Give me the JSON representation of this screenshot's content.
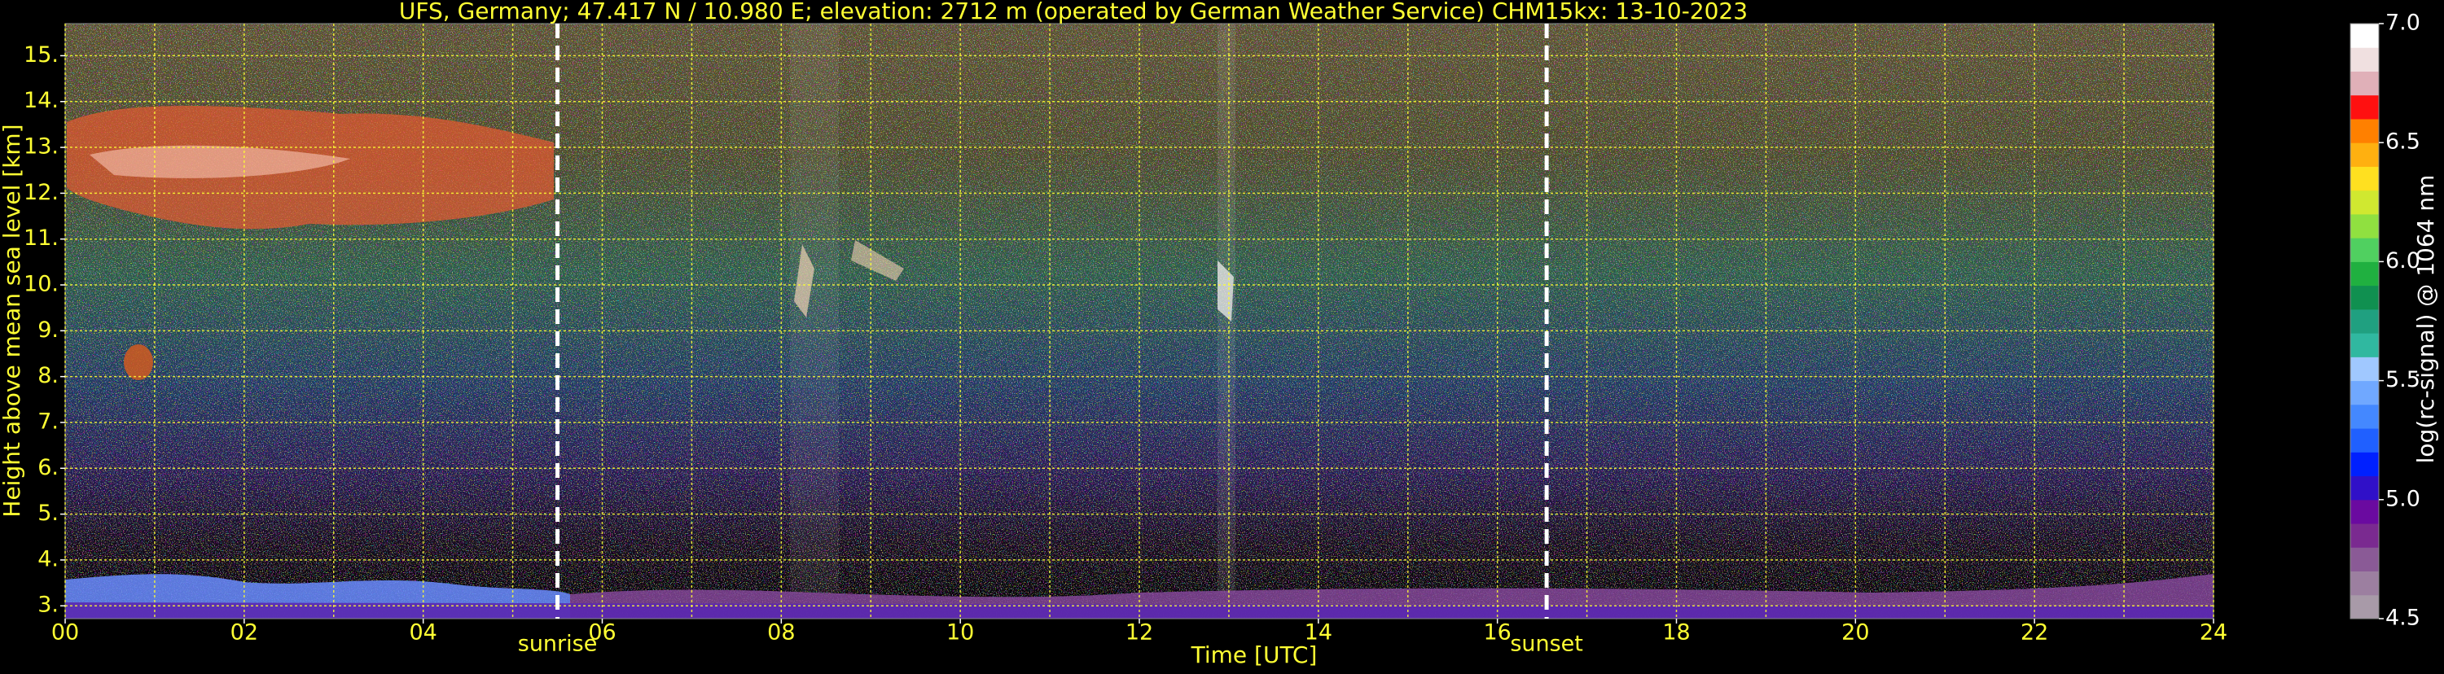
{
  "chart_data": {
    "type": "heatmap",
    "title": "UFS, Germany; 47.417 N / 10.980 E; elevation: 2712 m  (operated by German Weather Service)    CHM15kx: 13-10-2023",
    "x_label": "Time [UTC]",
    "y_label": "Height above mean sea level [km]",
    "xlim": [
      0,
      24
    ],
    "xticks": [
      {
        "value": 0,
        "label": "00"
      },
      {
        "value": 2,
        "label": "02"
      },
      {
        "value": 4,
        "label": "04"
      },
      {
        "value": 6,
        "label": "06"
      },
      {
        "value": 8,
        "label": "08"
      },
      {
        "value": 10,
        "label": "10"
      },
      {
        "value": 12,
        "label": "12"
      },
      {
        "value": 14,
        "label": "14"
      },
      {
        "value": 16,
        "label": "16"
      },
      {
        "value": 18,
        "label": "18"
      },
      {
        "value": 20,
        "label": "20"
      },
      {
        "value": 22,
        "label": "22"
      },
      {
        "value": 24,
        "label": "24"
      }
    ],
    "xminorticks": [
      1,
      3,
      5,
      7,
      9,
      11,
      13,
      15,
      17,
      19,
      21,
      23
    ],
    "ylim": [
      2.72,
      15.7
    ],
    "yticks": [
      {
        "value": 3,
        "label": "3."
      },
      {
        "value": 4,
        "label": "4."
      },
      {
        "value": 5,
        "label": "5."
      },
      {
        "value": 6,
        "label": "6."
      },
      {
        "value": 7,
        "label": "7."
      },
      {
        "value": 8,
        "label": "8."
      },
      {
        "value": 9,
        "label": "9."
      },
      {
        "value": 10,
        "label": "10."
      },
      {
        "value": 11,
        "label": "11."
      },
      {
        "value": 12,
        "label": "12."
      },
      {
        "value": 13,
        "label": "13."
      },
      {
        "value": 14,
        "label": "14."
      },
      {
        "value": 15,
        "label": "15."
      }
    ],
    "grid": true,
    "grid_color": "#ffff33",
    "annotations": [
      {
        "label": "sunrise",
        "x": 5.5
      },
      {
        "label": "sunset",
        "x": 16.55
      }
    ],
    "colorbar": {
      "label": "log(rc-signal) @ 1064 nm",
      "lim": [
        4.5,
        7.0
      ],
      "ticks": [
        {
          "value": 4.5,
          "label": "4.5"
        },
        {
          "value": 5.0,
          "label": "5.0"
        },
        {
          "value": 5.5,
          "label": "5.5"
        },
        {
          "value": 6.0,
          "label": "6.0"
        },
        {
          "value": 6.5,
          "label": "6.5"
        },
        {
          "value": 7.0,
          "label": "7.0"
        }
      ],
      "colors": [
        "#a89aa8",
        "#9c7fa0",
        "#8a5a96",
        "#7a2a90",
        "#6a0aa0",
        "#3010c8",
        "#0020ff",
        "#2060ff",
        "#4488ff",
        "#70a8ff",
        "#a0c8ff",
        "#30b8a0",
        "#20a080",
        "#109050",
        "#20b040",
        "#50d060",
        "#90e040",
        "#d0e830",
        "#ffe020",
        "#ffb010",
        "#ff8000",
        "#ff1010",
        "#e0b0b8",
        "#f0e0e0",
        "#ffffff"
      ]
    }
  }
}
